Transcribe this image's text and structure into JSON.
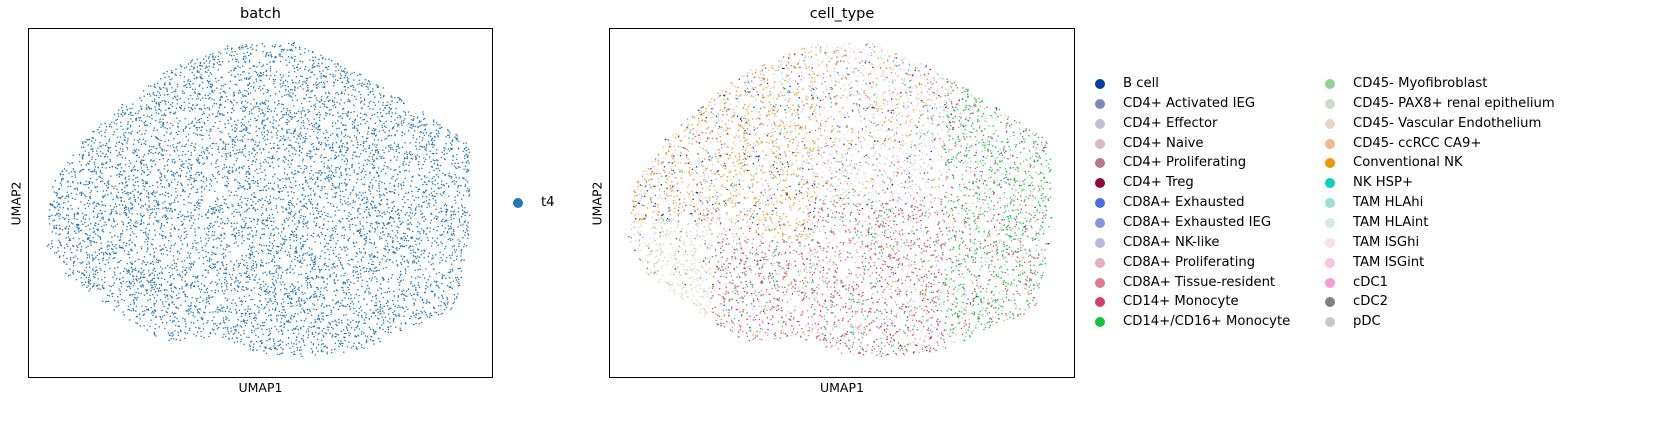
{
  "chart_data": [
    {
      "type": "scatter",
      "title": "batch",
      "xlabel": "UMAP1",
      "ylabel": "UMAP2",
      "grid": false,
      "legend_position": "right",
      "legend": [
        {
          "name": "t4",
          "color": "#1f77b4"
        }
      ]
    },
    {
      "type": "scatter",
      "title": "cell_type",
      "xlabel": "UMAP1",
      "ylabel": "UMAP2",
      "grid": false,
      "legend_position": "right",
      "legend": [
        {
          "name": "B cell",
          "color": "#023fa5"
        },
        {
          "name": "CD4+ Activated IEG",
          "color": "#7d87b9"
        },
        {
          "name": "CD4+ Effector",
          "color": "#bec1d4"
        },
        {
          "name": "CD4+ Naive",
          "color": "#d6bcc0"
        },
        {
          "name": "CD4+ Proliferating",
          "color": "#bb7784"
        },
        {
          "name": "CD4+ Treg",
          "color": "#8e063b"
        },
        {
          "name": "CD8A+ Exhausted",
          "color": "#4a6fe3"
        },
        {
          "name": "CD8A+ Exhausted IEG",
          "color": "#8595e1"
        },
        {
          "name": "CD8A+ NK-like",
          "color": "#b5bbe3"
        },
        {
          "name": "CD8A+ Proliferating",
          "color": "#e6afb9"
        },
        {
          "name": "CD8A+ Tissue-resident",
          "color": "#e07b91"
        },
        {
          "name": "CD14+ Monocyte",
          "color": "#d33f6a"
        },
        {
          "name": "CD14+/CD16+ Monocyte",
          "color": "#11c638"
        },
        {
          "name": "CD45- Myofibroblast",
          "color": "#8dd593"
        },
        {
          "name": "CD45- PAX8+ renal epithelium",
          "color": "#c6dec7"
        },
        {
          "name": "CD45- Vascular Endothelium",
          "color": "#ead3c6"
        },
        {
          "name": "CD45- ccRCC CA9+",
          "color": "#f0b98d"
        },
        {
          "name": "Conventional NK",
          "color": "#ef9708"
        },
        {
          "name": "NK HSP+",
          "color": "#0fcfc0"
        },
        {
          "name": "TAM HLAhi",
          "color": "#9cded6"
        },
        {
          "name": "TAM HLAint",
          "color": "#d5eae7"
        },
        {
          "name": "TAM ISGhi",
          "color": "#f3e1eb"
        },
        {
          "name": "TAM ISGint",
          "color": "#f6c4e1"
        },
        {
          "name": "cDC1",
          "color": "#f79cd4"
        },
        {
          "name": "cDC2",
          "color": "#7f7f7f"
        },
        {
          "name": "pDC",
          "color": "#c7c7c7"
        }
      ]
    }
  ]
}
